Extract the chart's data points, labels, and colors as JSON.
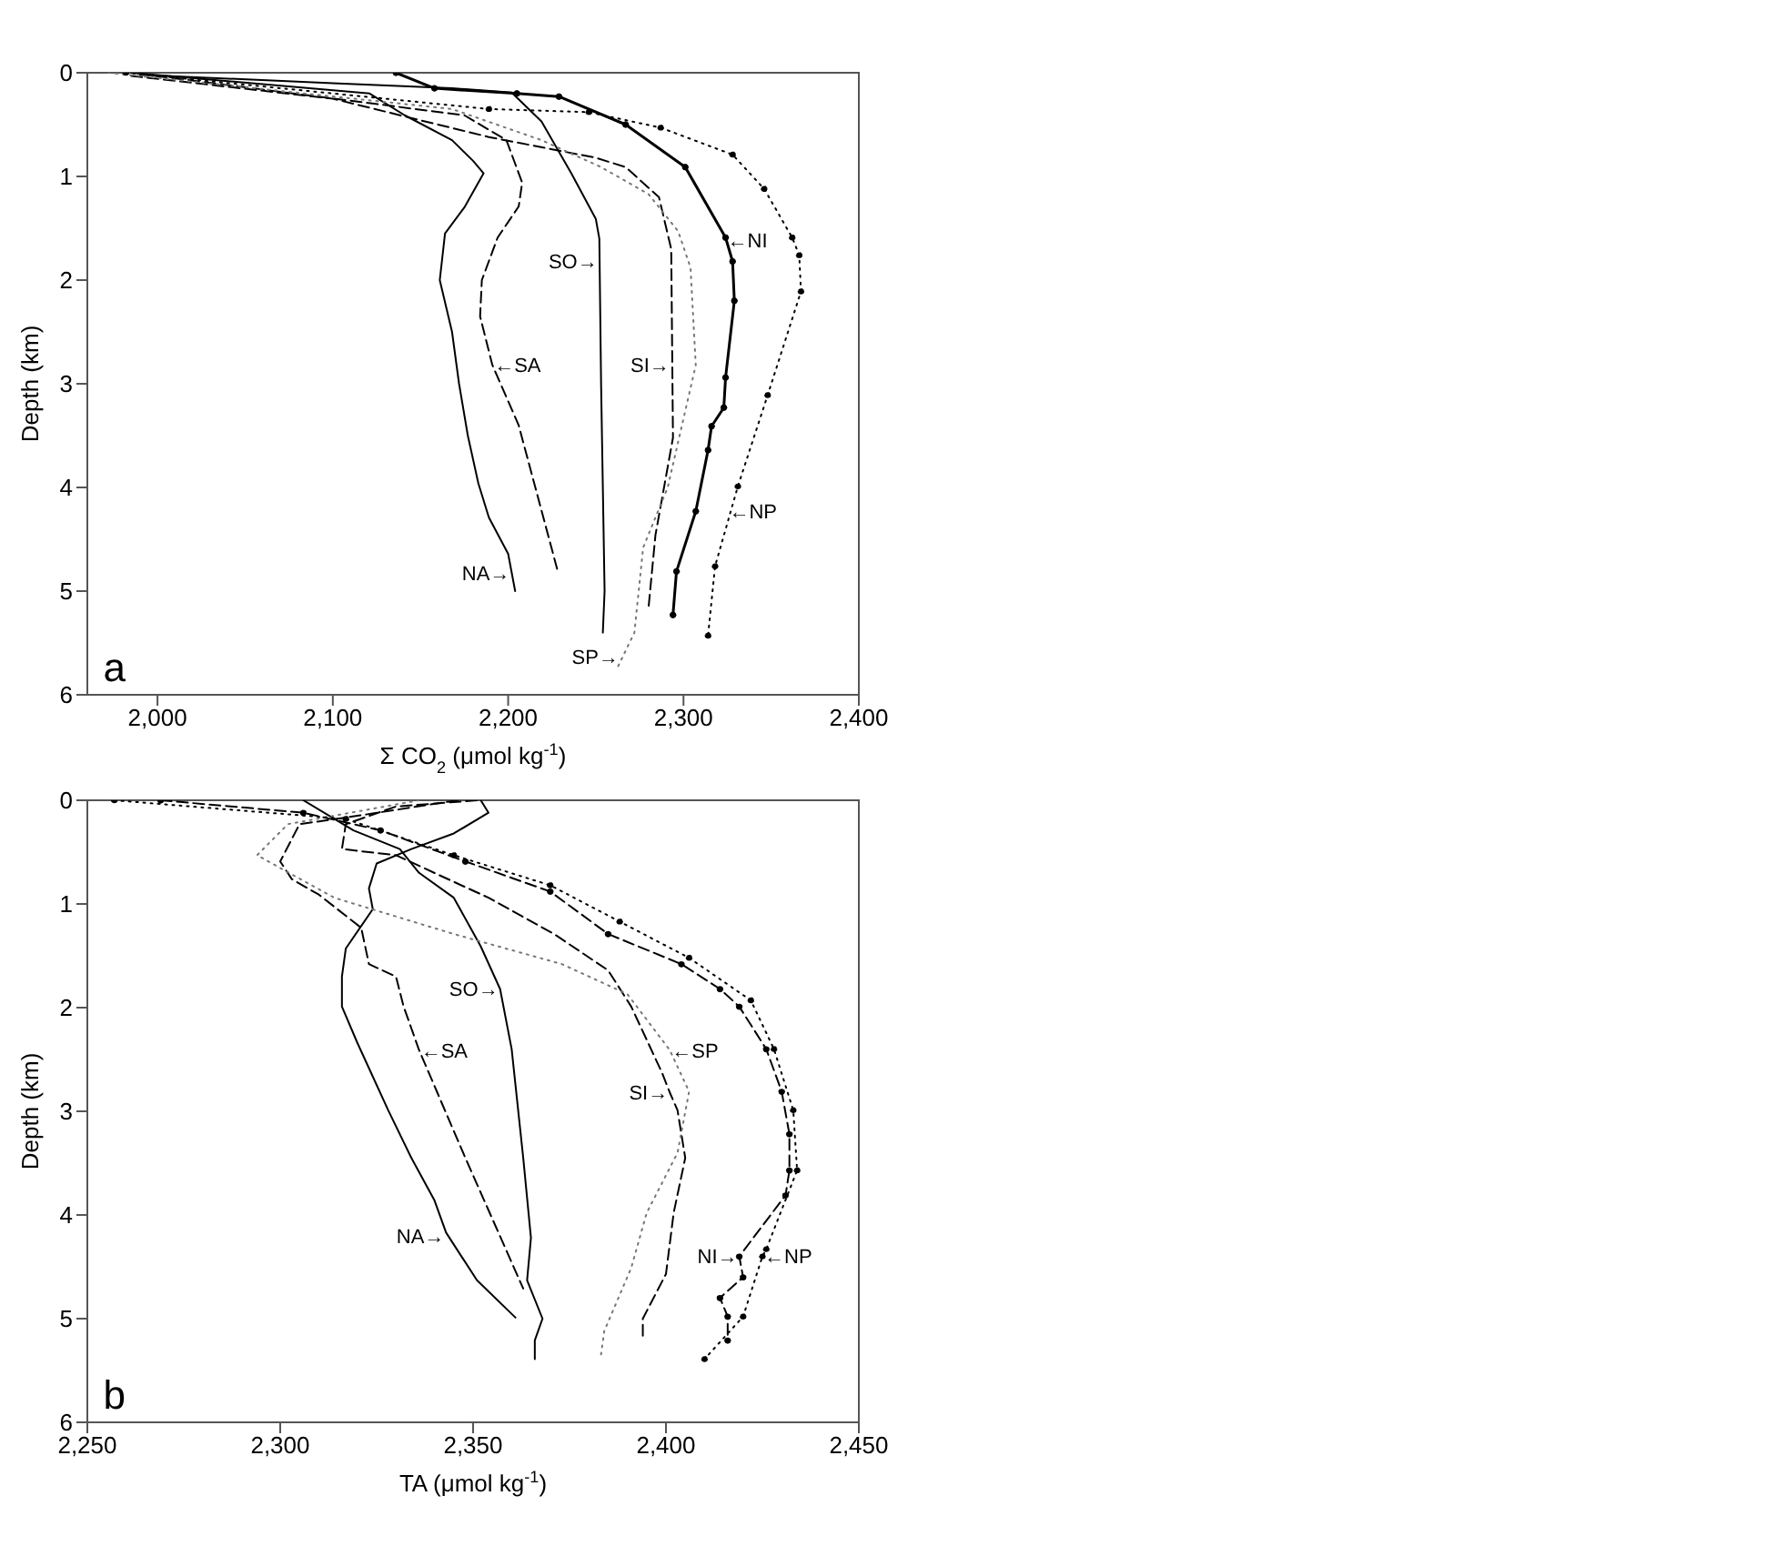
{
  "chart_data": [
    {
      "type": "line",
      "xlabel": "Σ CO$_{2}$ (μmol kg$^{-1}$)",
      "ylabel": "Depth (km)",
      "xlim": [
        1960,
        2400
      ],
      "xticks": [
        {
          "value": 2000,
          "label": "2,000"
        },
        {
          "value": 2100,
          "label": "2,100"
        },
        {
          "value": 2200,
          "label": "2,200"
        },
        {
          "value": 2300,
          "label": "2,300"
        },
        {
          "value": 2400,
          "label": "2,400"
        }
      ],
      "ylim": [
        6,
        0
      ],
      "yticks": [
        0,
        1,
        2,
        3,
        4,
        5,
        6
      ],
      "series": [
        {
          "color": "#000000",
          "line_style": "solid",
          "x": [
            1985,
            2121,
            2141,
            2168,
            2180,
            2186,
            2175,
            2164,
            2161,
            2168,
            2172,
            2177,
            2183,
            2189,
            2200,
            2204
          ],
          "values": [
            0,
            0.2,
            0.41,
            0.65,
            0.85,
            0.97,
            1.3,
            1.55,
            2.0,
            2.5,
            3.0,
            3.5,
            3.96,
            4.29,
            4.64,
            5.0
          ]
        },
        {
          "color": "#000000",
          "line_style": "solid",
          "x": [
            1990,
            2100,
            2168,
            2202,
            2219,
            2236,
            2250,
            2252,
            2253,
            2254,
            2255,
            2254
          ],
          "values": [
            0.02,
            0.1,
            0.15,
            0.19,
            0.47,
            0.97,
            1.41,
            1.6,
            3.0,
            4.0,
            5.0,
            5.4
          ]
        },
        {
          "color": "#000000",
          "line_style": "dashed",
          "x": [
            1999,
            2175,
            2199,
            2208,
            2206,
            2194,
            2185,
            2184,
            2191,
            2206,
            2228
          ],
          "values": [
            0.03,
            0.41,
            0.65,
            1.06,
            1.29,
            1.59,
            2.0,
            2.35,
            2.82,
            3.4,
            4.79
          ]
        },
        {
          "color": "#000000",
          "line_style": "dashed",
          "x": [
            1985,
            2100,
            2160,
            2189,
            2250,
            2267,
            2286,
            2293,
            2294,
            2284,
            2280
          ],
          "values": [
            0.03,
            0.25,
            0.5,
            0.62,
            0.82,
            0.91,
            1.2,
            1.7,
            3.52,
            4.46,
            5.17
          ]
        },
        {
          "color": "#777777",
          "line_style": "dotted",
          "x": [
            1972,
            2168,
            2219,
            2253,
            2280,
            2297,
            2304,
            2307,
            2291,
            2277,
            2272,
            2262
          ],
          "values": [
            0,
            0.35,
            0.65,
            0.91,
            1.17,
            1.53,
            1.88,
            2.82,
            4.0,
            4.58,
            5.4,
            5.75
          ]
        },
        {
          "color": "#000000",
          "line_style": "solid",
          "marker": "circle",
          "x": [
            2136,
            2158,
            2205,
            2229,
            2267,
            2301,
            2324,
            2328,
            2329,
            2324,
            2323,
            2316,
            2314,
            2307,
            2296,
            2294
          ],
          "values": [
            0,
            0.15,
            0.2,
            0.23,
            0.5,
            0.91,
            1.59,
            1.82,
            2.2,
            2.94,
            3.23,
            3.41,
            3.64,
            4.23,
            4.81,
            5.23
          ]
        },
        {
          "color": "#000000",
          "line_style": "dotted",
          "marker": "circle",
          "x": [
            1982,
            2189,
            2246,
            2287,
            2328,
            2346,
            2362,
            2366,
            2367,
            2348,
            2331,
            2318,
            2314
          ],
          "values": [
            0,
            0.35,
            0.38,
            0.53,
            0.79,
            1.12,
            1.59,
            1.76,
            2.11,
            3.11,
            3.99,
            4.76,
            5.43
          ]
        }
      ],
      "annotations": [
        {
          "text": "SO→",
          "x": 2252,
          "y": 1.82
        },
        {
          "text": "←NI",
          "x": 2324,
          "y": 1.62
        },
        {
          "text": "←SA",
          "x": 2191,
          "y": 2.82
        },
        {
          "text": "SI→",
          "x": 2293,
          "y": 2.82
        },
        {
          "text": "←NP",
          "x": 2325,
          "y": 4.23
        },
        {
          "text": "NA→",
          "x": 2202,
          "y": 4.83
        },
        {
          "text": "SP→",
          "x": 2264,
          "y": 5.63
        },
        "a"
      ]
    },
    {
      "type": "line",
      "xlabel": "TA (μmol kg$^{-1}$)",
      "ylabel": "Depth (km)",
      "xlim": [
        2250,
        2450
      ],
      "xticks": [
        {
          "value": 2250,
          "label": "2,250"
        },
        {
          "value": 2300,
          "label": "2,300"
        },
        {
          "value": 2350,
          "label": "2,350"
        },
        {
          "value": 2400,
          "label": "2,400"
        },
        {
          "value": 2450,
          "label": "2,450"
        }
      ],
      "ylim": [
        6,
        0
      ],
      "yticks": [
        0,
        1,
        2,
        3,
        4,
        5,
        6
      ],
      "series": [
        {
          "color": "#000000",
          "line_style": "solid",
          "x": [
            2352,
            2354,
            2345,
            2334,
            2325,
            2323,
            2324,
            2317,
            2316,
            2316,
            2320,
            2328,
            2334,
            2340,
            2343,
            2351,
            2361
          ],
          "values": [
            0,
            0.12,
            0.32,
            0.47,
            0.61,
            0.85,
            1.05,
            1.43,
            1.7,
            1.99,
            2.34,
            2.99,
            3.45,
            3.86,
            4.17,
            4.63,
            4.99
          ]
        },
        {
          "color": "#000000",
          "line_style": "solid",
          "x": [
            2306,
            2319,
            2331,
            2336,
            2345,
            2352,
            2357,
            2360,
            2363,
            2365,
            2364,
            2368,
            2366,
            2366
          ],
          "values": [
            0,
            0.29,
            0.47,
            0.7,
            0.94,
            1.41,
            1.82,
            2.4,
            3.45,
            4.22,
            4.63,
            5.0,
            5.21,
            5.39
          ]
        },
        {
          "color": "#000000",
          "line_style": "dashed",
          "x": [
            2346,
            2320,
            2305,
            2300,
            2303,
            2310,
            2321,
            2323,
            2330,
            2332,
            2336,
            2348,
            2363
          ],
          "values": [
            0,
            0.15,
            0.23,
            0.59,
            0.76,
            0.91,
            1.23,
            1.58,
            1.7,
            1.99,
            2.41,
            3.45,
            4.71
          ]
        },
        {
          "color": "#000000",
          "line_style": "dashed",
          "x": [
            2351,
            2330,
            2317,
            2316,
            2330,
            2354,
            2371,
            2385,
            2391,
            2399,
            2401,
            2403,
            2405,
            2402,
            2400,
            2394,
            2394
          ],
          "values": [
            0,
            0.06,
            0.23,
            0.47,
            0.53,
            0.94,
            1.29,
            1.64,
            1.99,
            2.63,
            2.82,
            2.99,
            3.45,
            3.98,
            4.57,
            5.0,
            5.21
          ]
        },
        {
          "color": "#777777",
          "line_style": "dotted",
          "x": [
            2336,
            2302,
            2294,
            2314,
            2345,
            2373,
            2390,
            2401,
            2406,
            2403,
            2395,
            2391,
            2384,
            2383
          ],
          "values": [
            0,
            0.23,
            0.53,
            0.94,
            1.29,
            1.58,
            1.87,
            2.41,
            2.81,
            3.4,
            3.98,
            4.51,
            5.12,
            5.39
          ]
        },
        {
          "color": "#000000",
          "line_style": "dashed",
          "marker": "circle",
          "x": [
            2269,
            2306,
            2326,
            2348,
            2370,
            2385,
            2404,
            2414,
            2419,
            2426,
            2430,
            2432,
            2432,
            2431,
            2419,
            2420,
            2414,
            2416,
            2416
          ],
          "values": [
            0,
            0.12,
            0.29,
            0.59,
            0.88,
            1.29,
            1.58,
            1.82,
            1.99,
            2.4,
            2.81,
            3.22,
            3.57,
            3.81,
            4.4,
            4.6,
            4.8,
            4.98,
            5.21
          ]
        },
        {
          "color": "#000000",
          "line_style": "dotted",
          "marker": "circle",
          "x": [
            2257,
            2317,
            2345,
            2370,
            2388,
            2406,
            2422,
            2428,
            2433,
            2434,
            2426,
            2425,
            2420,
            2410
          ],
          "values": [
            0,
            0.18,
            0.53,
            0.82,
            1.17,
            1.52,
            1.93,
            2.4,
            2.99,
            3.57,
            4.33,
            4.4,
            4.98,
            5.39
          ]
        }
      ],
      "annotations": [
        {
          "text": "SO→",
          "x": 2357,
          "y": 1.82
        },
        {
          "text": "←SA",
          "x": 2336,
          "y": 2.41
        },
        {
          "text": "←SP",
          "x": 2401,
          "y": 2.41
        },
        {
          "text": "SI→",
          "x": 2401,
          "y": 2.82
        },
        {
          "text": "NA→",
          "x": 2343,
          "y": 4.2
        },
        {
          "text": "NI→",
          "x": 2419,
          "y": 4.4
        },
        {
          "text": "←NP",
          "x": 2425,
          "y": 4.4
        },
        "b"
      ]
    }
  ]
}
